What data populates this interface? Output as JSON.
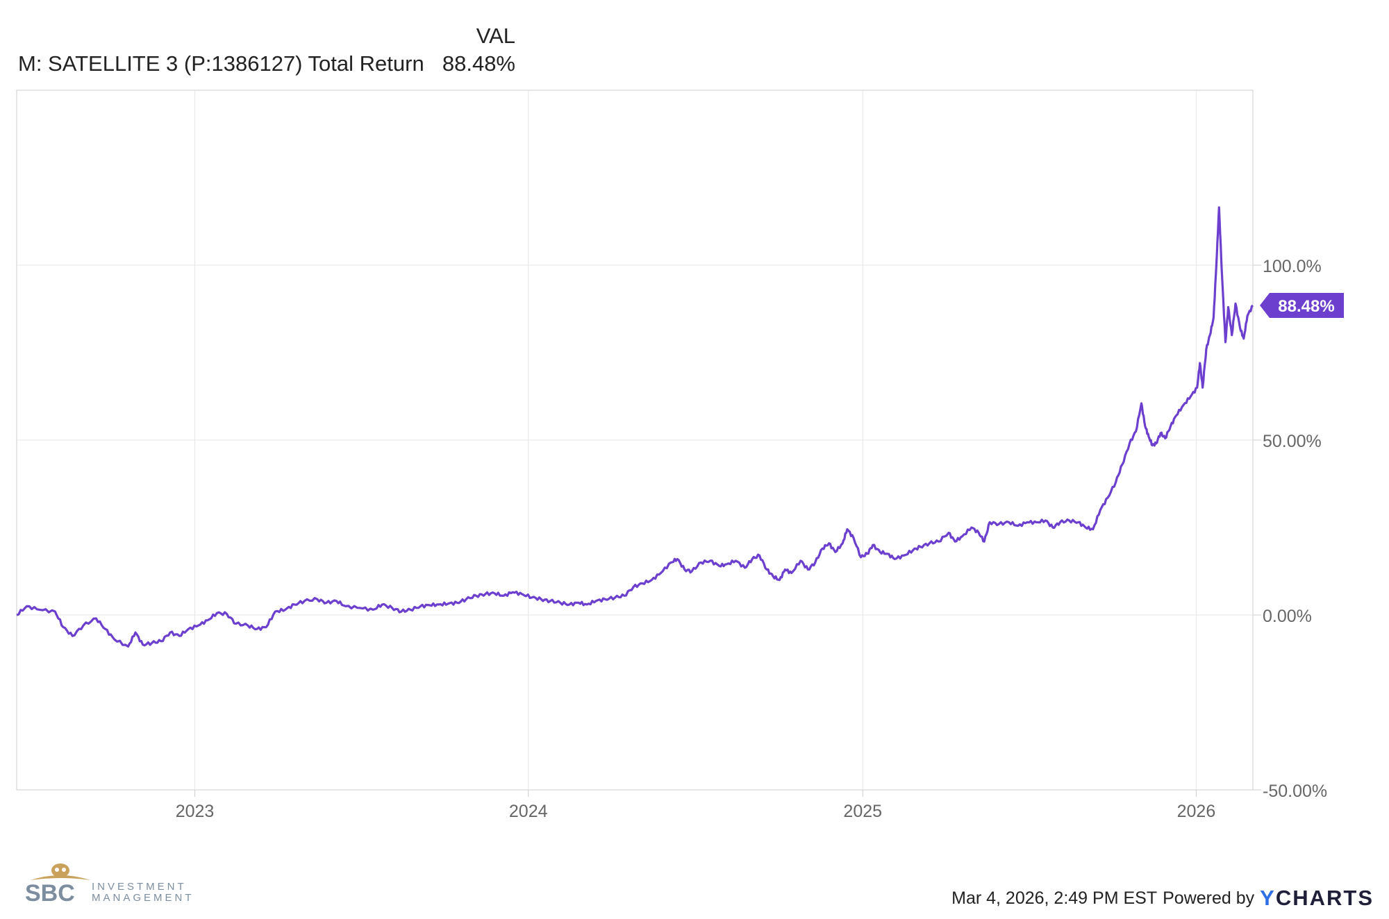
{
  "legend": {
    "column_header": "VAL",
    "series_name": "M: SATELLITE 3 (P:1386127) Total Return",
    "series_value": "88.48%"
  },
  "chart_data": {
    "type": "line",
    "title": "",
    "xlabel": "",
    "ylabel": "",
    "x_range": [
      "2022-06-20",
      "2026-03-04"
    ],
    "ylim": [
      -50,
      150
    ],
    "x_tick_labels": [
      "2023",
      "2024",
      "2025",
      "2026"
    ],
    "y_tick_labels": [
      "100.0%",
      "50.00%",
      "0.00%",
      "-50.00%"
    ],
    "y_ticks": [
      100,
      50,
      0,
      -50
    ],
    "grid": true,
    "series": [
      {
        "name": "M: SATELLITE 3 (P:1386127) Total Return",
        "color": "#6c3fcf",
        "last_value_label": "88.48%",
        "points": [
          [
            "2022-06-20",
            0.0
          ],
          [
            "2022-07-01",
            2.5
          ],
          [
            "2022-07-15",
            1.5
          ],
          [
            "2022-08-01",
            1.0
          ],
          [
            "2022-08-10",
            -3.5
          ],
          [
            "2022-08-20",
            -6.0
          ],
          [
            "2022-09-01",
            -3.0
          ],
          [
            "2022-09-15",
            -1.0
          ],
          [
            "2022-09-25",
            -4.0
          ],
          [
            "2022-10-05",
            -7.0
          ],
          [
            "2022-10-20",
            -9.0
          ],
          [
            "2022-10-28",
            -5.0
          ],
          [
            "2022-11-05",
            -8.5
          ],
          [
            "2022-11-15",
            -8.0
          ],
          [
            "2022-11-25",
            -7.5
          ],
          [
            "2022-12-05",
            -5.0
          ],
          [
            "2022-12-15",
            -6.0
          ],
          [
            "2022-12-25",
            -4.0
          ],
          [
            "2023-01-05",
            -3.0
          ],
          [
            "2023-01-15",
            -1.5
          ],
          [
            "2023-01-25",
            0.5
          ],
          [
            "2023-02-05",
            0.3
          ],
          [
            "2023-02-15",
            -2.5
          ],
          [
            "2023-02-28",
            -3.0
          ],
          [
            "2023-03-10",
            -4.0
          ],
          [
            "2023-03-20",
            -3.5
          ],
          [
            "2023-03-30",
            1.0
          ],
          [
            "2023-04-10",
            1.5
          ],
          [
            "2023-04-20",
            3.0
          ],
          [
            "2023-05-01",
            4.0
          ],
          [
            "2023-05-15",
            4.5
          ],
          [
            "2023-05-25",
            3.5
          ],
          [
            "2023-06-05",
            4.0
          ],
          [
            "2023-06-15",
            2.5
          ],
          [
            "2023-07-01",
            2.0
          ],
          [
            "2023-07-15",
            1.5
          ],
          [
            "2023-07-25",
            3.0
          ],
          [
            "2023-08-05",
            2.0
          ],
          [
            "2023-08-15",
            1.0
          ],
          [
            "2023-08-25",
            1.5
          ],
          [
            "2023-09-05",
            2.5
          ],
          [
            "2023-09-15",
            2.8
          ],
          [
            "2023-09-25",
            3.0
          ],
          [
            "2023-10-05",
            3.2
          ],
          [
            "2023-10-15",
            3.5
          ],
          [
            "2023-10-25",
            4.5
          ],
          [
            "2023-11-05",
            5.5
          ],
          [
            "2023-11-15",
            6.0
          ],
          [
            "2023-11-25",
            6.2
          ],
          [
            "2023-12-05",
            5.5
          ],
          [
            "2023-12-15",
            6.5
          ],
          [
            "2023-12-25",
            6.0
          ],
          [
            "2024-01-05",
            5.0
          ],
          [
            "2024-01-15",
            4.5
          ],
          [
            "2024-01-25",
            4.0
          ],
          [
            "2024-02-05",
            3.5
          ],
          [
            "2024-02-15",
            3.0
          ],
          [
            "2024-02-25",
            3.5
          ],
          [
            "2024-03-05",
            3.0
          ],
          [
            "2024-03-15",
            4.0
          ],
          [
            "2024-03-25",
            4.5
          ],
          [
            "2024-04-05",
            5.0
          ],
          [
            "2024-04-15",
            5.5
          ],
          [
            "2024-04-25",
            8.0
          ],
          [
            "2024-05-05",
            9.0
          ],
          [
            "2024-05-15",
            10.0
          ],
          [
            "2024-05-25",
            12.0
          ],
          [
            "2024-06-05",
            15.0
          ],
          [
            "2024-06-12",
            16.0
          ],
          [
            "2024-06-20",
            13.0
          ],
          [
            "2024-06-28",
            12.5
          ],
          [
            "2024-07-08",
            15.0
          ],
          [
            "2024-07-18",
            15.5
          ],
          [
            "2024-07-28",
            14.0
          ],
          [
            "2024-08-05",
            14.5
          ],
          [
            "2024-08-15",
            15.5
          ],
          [
            "2024-08-25",
            13.5
          ],
          [
            "2024-09-02",
            16.0
          ],
          [
            "2024-09-10",
            17.0
          ],
          [
            "2024-09-18",
            13.0
          ],
          [
            "2024-09-25",
            11.0
          ],
          [
            "2024-10-02",
            10.0
          ],
          [
            "2024-10-08",
            13.0
          ],
          [
            "2024-10-15",
            12.0
          ],
          [
            "2024-10-25",
            15.5
          ],
          [
            "2024-11-02",
            13.0
          ],
          [
            "2024-11-10",
            15.0
          ],
          [
            "2024-11-18",
            19.0
          ],
          [
            "2024-11-25",
            20.5
          ],
          [
            "2024-12-02",
            18.0
          ],
          [
            "2024-12-10",
            20.5
          ],
          [
            "2024-12-15",
            24.5
          ],
          [
            "2024-12-22",
            22.0
          ],
          [
            "2024-12-30",
            16.5
          ],
          [
            "2025-01-06",
            17.5
          ],
          [
            "2025-01-12",
            20.0
          ],
          [
            "2025-01-20",
            18.0
          ],
          [
            "2025-01-28",
            17.5
          ],
          [
            "2025-02-05",
            16.0
          ],
          [
            "2025-02-15",
            17.0
          ],
          [
            "2025-02-25",
            18.5
          ],
          [
            "2025-03-05",
            19.5
          ],
          [
            "2025-03-15",
            20.5
          ],
          [
            "2025-03-25",
            21.0
          ],
          [
            "2025-04-05",
            23.5
          ],
          [
            "2025-04-12",
            21.0
          ],
          [
            "2025-04-20",
            22.5
          ],
          [
            "2025-04-30",
            25.0
          ],
          [
            "2025-05-08",
            23.5
          ],
          [
            "2025-05-14",
            21.0
          ],
          [
            "2025-05-20",
            26.5
          ],
          [
            "2025-05-30",
            26.0
          ],
          [
            "2025-06-10",
            26.5
          ],
          [
            "2025-06-20",
            25.5
          ],
          [
            "2025-06-30",
            26.5
          ],
          [
            "2025-07-10",
            26.5
          ],
          [
            "2025-07-20",
            27.0
          ],
          [
            "2025-07-28",
            25.0
          ],
          [
            "2025-08-05",
            26.5
          ],
          [
            "2025-08-15",
            27.0
          ],
          [
            "2025-08-25",
            26.5
          ],
          [
            "2025-09-02",
            25.0
          ],
          [
            "2025-09-10",
            24.5
          ],
          [
            "2025-09-18",
            30.0
          ],
          [
            "2025-09-26",
            33.5
          ],
          [
            "2025-10-05",
            38.0
          ],
          [
            "2025-10-12",
            43.0
          ],
          [
            "2025-10-20",
            49.0
          ],
          [
            "2025-10-27",
            52.5
          ],
          [
            "2025-11-02",
            60.5
          ],
          [
            "2025-11-06",
            54.0
          ],
          [
            "2025-11-10",
            51.0
          ],
          [
            "2025-11-14",
            48.5
          ],
          [
            "2025-11-18",
            49.0
          ],
          [
            "2025-11-23",
            52.0
          ],
          [
            "2025-11-28",
            50.5
          ],
          [
            "2025-12-04",
            54.0
          ],
          [
            "2025-12-10",
            57.0
          ],
          [
            "2025-12-18",
            60.0
          ],
          [
            "2025-12-26",
            62.5
          ],
          [
            "2026-01-02",
            65.0
          ],
          [
            "2026-01-05",
            72.0
          ],
          [
            "2026-01-08",
            65.0
          ],
          [
            "2026-01-12",
            76.0
          ],
          [
            "2026-01-16",
            80.0
          ],
          [
            "2026-01-20",
            85.0
          ],
          [
            "2026-01-23",
            100.0
          ],
          [
            "2026-01-26",
            116.5
          ],
          [
            "2026-01-29",
            98.0
          ],
          [
            "2026-02-02",
            78.0
          ],
          [
            "2026-02-05",
            88.0
          ],
          [
            "2026-02-09",
            80.0
          ],
          [
            "2026-02-13",
            89.0
          ],
          [
            "2026-02-18",
            82.0
          ],
          [
            "2026-02-22",
            79.0
          ],
          [
            "2026-02-26",
            85.5
          ],
          [
            "2026-03-04",
            88.48
          ]
        ]
      }
    ]
  },
  "footer": {
    "logo_line1": "SBC",
    "logo_line2": "INVESTMENT",
    "logo_line3": "MANAGEMENT",
    "timestamp": "Mar 4, 2026, 2:49 PM EST",
    "powered_by": "Powered by",
    "brand_y": "Y",
    "brand_rest": "CHARTS",
    "brand_accent": "#2f6fe4"
  }
}
